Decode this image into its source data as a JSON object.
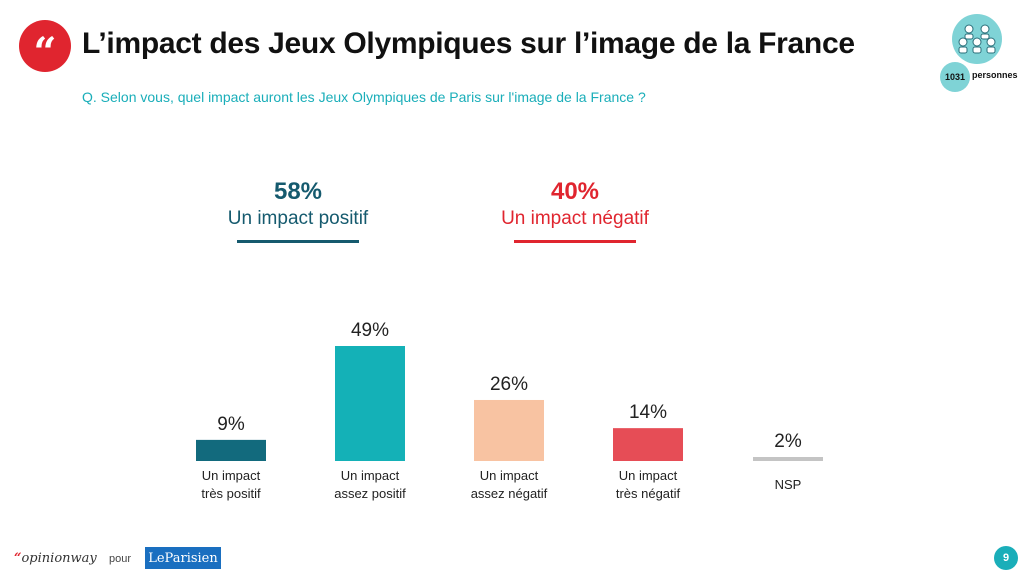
{
  "header": {
    "quote_glyph": "“",
    "title": "L’impact des Jeux Olympiques sur l’image de la France",
    "question": "Q. Selon vous, quel impact auront les Jeux Olympiques de Paris sur l'image de la France ?"
  },
  "sample": {
    "count": "1031",
    "label": "personnes",
    "icon": "audience-icon"
  },
  "summary": {
    "positive": {
      "pct": "58%",
      "label": "Un impact positif",
      "color": "#155a6e"
    },
    "negative": {
      "pct": "40%",
      "label": "Un impact négatif",
      "color": "#e0252f"
    }
  },
  "chart_data": {
    "type": "bar",
    "categories": [
      [
        "Un impact",
        "très positif"
      ],
      [
        "Un impact",
        "assez positif"
      ],
      [
        "Un impact",
        "assez négatif"
      ],
      [
        "Un impact",
        "très négatif"
      ],
      [
        "NSP"
      ]
    ],
    "values": [
      9,
      49,
      26,
      14,
      2
    ],
    "value_labels": [
      "9%",
      "49%",
      "26%",
      "14%",
      "2%"
    ],
    "colors": [
      "#126a7d",
      "#14b1b7",
      "#f8c3a2",
      "#e64d56",
      "#c4c4c4"
    ],
    "title": "",
    "xlabel": "",
    "ylabel": "",
    "ylim": [
      0,
      49
    ],
    "grid": false
  },
  "footer": {
    "brand_quote": "“",
    "brand": "opinionway",
    "pour": "pour",
    "paper": "LeParisien",
    "page": "9"
  }
}
